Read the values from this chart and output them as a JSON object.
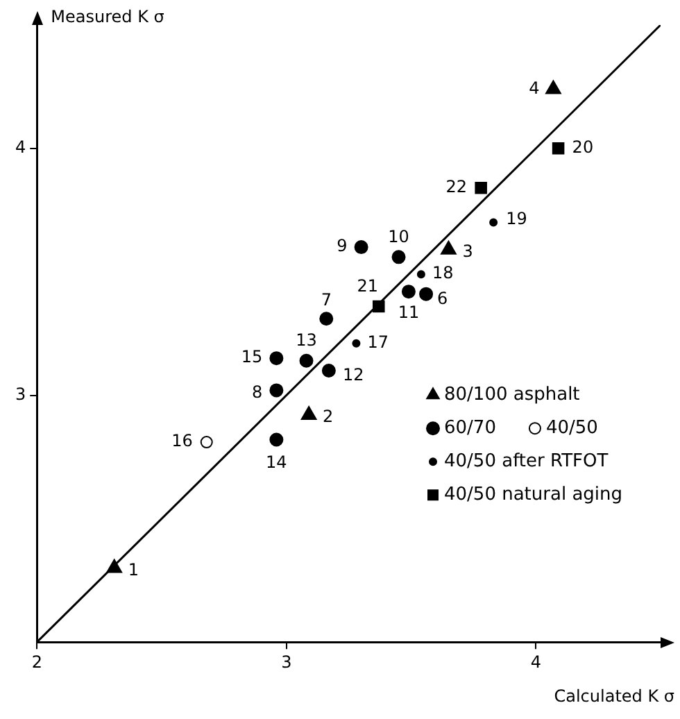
{
  "chart_data": {
    "type": "scatter",
    "xlabel": "Calculated K σ",
    "ylabel": "Measured K σ",
    "xlim": [
      2,
      4.5
    ],
    "ylim": [
      2,
      4.5
    ],
    "xticks": [
      2,
      3,
      4
    ],
    "yticks": [
      3,
      4
    ],
    "grid": false,
    "legend": "bottom right",
    "series": [
      {
        "name": "80/100 asphalt",
        "color": "#000000",
        "marker": "triangle",
        "x": [
          2.31,
          3.09,
          3.65,
          4.07
        ],
        "values": [
          2.3,
          2.92,
          3.59,
          4.24
        ]
      },
      {
        "name": "60/70",
        "color": "#000000",
        "marker": "circle",
        "x": [
          3.56,
          3.16,
          2.96,
          3.3,
          3.45,
          3.49,
          3.17,
          3.08,
          2.96,
          2.96
        ],
        "values": [
          3.41,
          3.31,
          3.02,
          3.6,
          3.56,
          3.42,
          3.1,
          3.14,
          2.82,
          3.15
        ]
      },
      {
        "name": "40/50",
        "color": "#ffffff",
        "marker": "circle",
        "x": [
          2.68
        ],
        "values": [
          2.81
        ]
      },
      {
        "name": "40/50 after RTFOT",
        "color": "#000000",
        "marker": "circle",
        "x": [
          3.28,
          3.54,
          3.83
        ],
        "values": [
          3.21,
          3.49,
          3.7
        ]
      },
      {
        "name": "40/50 natural aging",
        "color": "#000000",
        "marker": "square",
        "x": [
          4.09,
          3.37,
          3.78
        ],
        "values": [
          4.0,
          3.36,
          3.84
        ]
      },
      {
        "type": "line",
        "color": "#000000",
        "marker": "none",
        "x": [
          2,
          4.5
        ],
        "values": [
          2,
          4.5
        ]
      }
    ],
    "annotations": [
      {
        "text": "1",
        "x": 2.31,
        "y": 2.3
      },
      {
        "text": "2",
        "x": 3.09,
        "y": 2.92
      },
      {
        "text": "3",
        "x": 3.65,
        "y": 3.59
      },
      {
        "text": "4",
        "x": 4.07,
        "y": 4.24
      },
      {
        "text": "6",
        "x": 3.56,
        "y": 3.41
      },
      {
        "text": "7",
        "x": 3.16,
        "y": 3.31
      },
      {
        "text": "8",
        "x": 2.96,
        "y": 3.02
      },
      {
        "text": "9",
        "x": 3.3,
        "y": 3.6
      },
      {
        "text": "10",
        "x": 3.45,
        "y": 3.56
      },
      {
        "text": "11",
        "x": 3.49,
        "y": 3.42
      },
      {
        "text": "12",
        "x": 3.17,
        "y": 3.1
      },
      {
        "text": "13",
        "x": 3.08,
        "y": 3.14
      },
      {
        "text": "14",
        "x": 2.96,
        "y": 2.82
      },
      {
        "text": "15",
        "x": 2.96,
        "y": 3.15
      },
      {
        "text": "16",
        "x": 2.68,
        "y": 2.81
      },
      {
        "text": "17",
        "x": 3.28,
        "y": 3.21
      },
      {
        "text": "18",
        "x": 3.54,
        "y": 3.49
      },
      {
        "text": "19",
        "x": 3.83,
        "y": 3.7
      },
      {
        "text": "20",
        "x": 4.09,
        "y": 4.0
      },
      {
        "text": "21",
        "x": 3.37,
        "y": 3.36
      },
      {
        "text": "22",
        "x": 3.78,
        "y": 3.84
      }
    ]
  }
}
